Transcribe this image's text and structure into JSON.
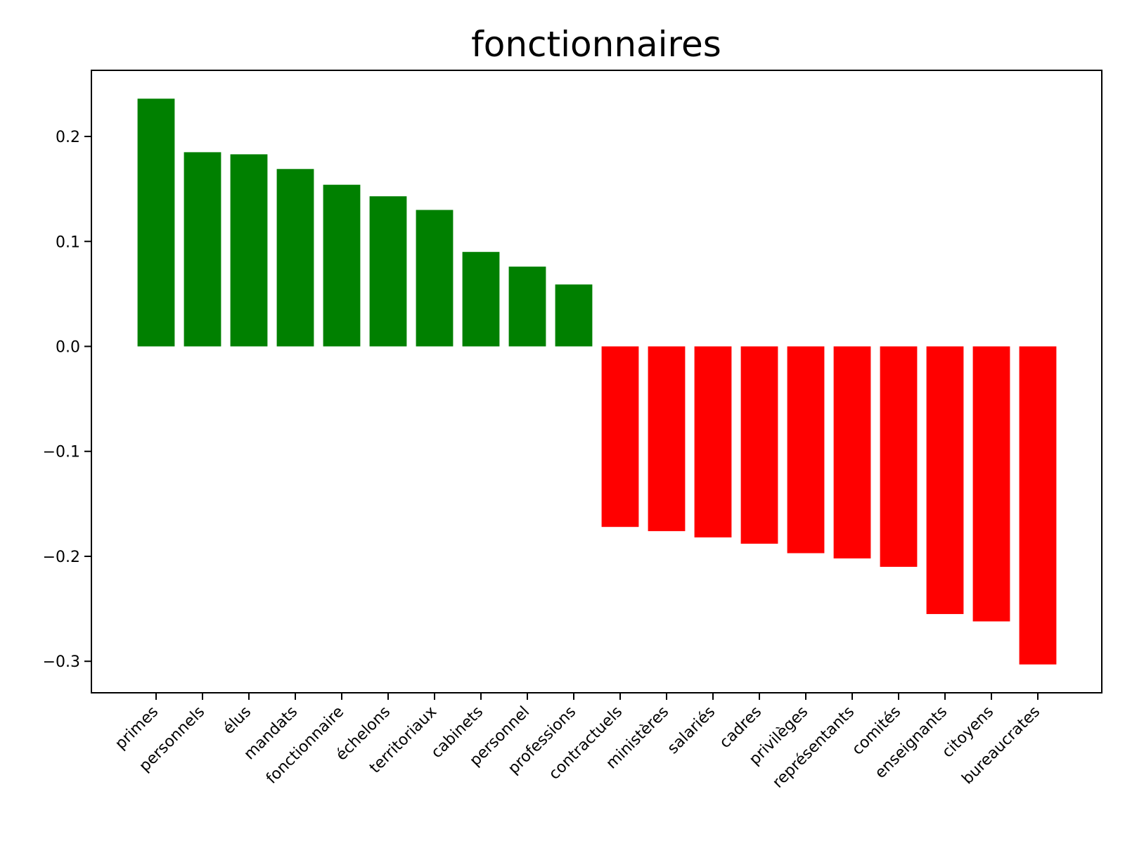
{
  "chart_data": {
    "type": "bar",
    "title": "fonctionnaires",
    "xlabel": "",
    "ylabel": "",
    "ylim": [
      -0.33,
      0.263
    ],
    "yticks": [
      0.2,
      0.1,
      0.0,
      -0.1,
      -0.2,
      -0.3
    ],
    "ytick_labels": [
      "0.2",
      "0.1",
      "0.0",
      "−0.1",
      "−0.2",
      "−0.3"
    ],
    "colors": {
      "positive": "#008000",
      "negative": "#ff0000"
    },
    "grid": false,
    "categories": [
      "primes",
      "personnels",
      "élus",
      "mandats",
      "fonctionnaire",
      "échelons",
      "territoriaux",
      "cabinets",
      "personnel",
      "professions",
      "contractuels",
      "ministères",
      "salariés",
      "cadres",
      "privilèges",
      "représentants",
      "comités",
      "enseignants",
      "citoyens",
      "bureaucrates"
    ],
    "values": [
      0.236,
      0.185,
      0.183,
      0.169,
      0.154,
      0.143,
      0.13,
      0.09,
      0.076,
      0.059,
      -0.172,
      -0.176,
      -0.182,
      -0.188,
      -0.197,
      -0.202,
      -0.21,
      -0.255,
      -0.262,
      -0.303
    ]
  }
}
